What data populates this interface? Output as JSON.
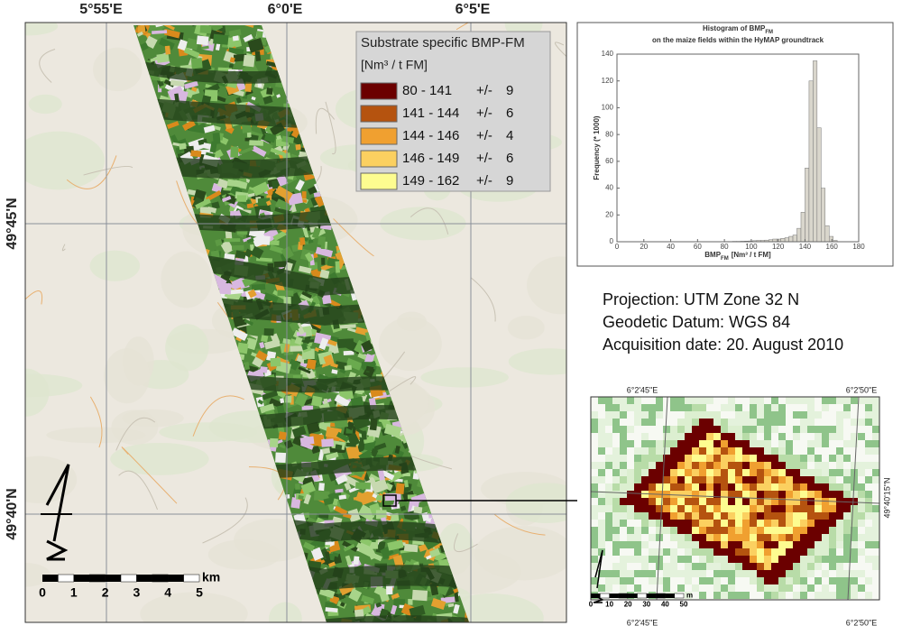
{
  "map": {
    "lon_labels": [
      "5°55'E",
      "6°0'E",
      "6°5'E"
    ],
    "lat_labels": [
      "49°45'N",
      "49°40'N"
    ],
    "scale_labels": [
      "0",
      "1",
      "2",
      "3",
      "4",
      "5"
    ],
    "scale_unit": "km"
  },
  "legend": {
    "title": "Substrate specific BMP-FM",
    "unit": "[Nm³ / t FM]",
    "classes": [
      {
        "range": "80 - 141",
        "sign": "+/-",
        "error": "9",
        "color": "#6b0000"
      },
      {
        "range": "141 - 144",
        "sign": "+/-",
        "error": "6",
        "color": "#b5530f"
      },
      {
        "range": "144 - 146",
        "sign": "+/-",
        "error": "4",
        "color": "#f0a030"
      },
      {
        "range": "146 - 149",
        "sign": "+/-",
        "error": "6",
        "color": "#fbd060"
      },
      {
        "range": "149 - 162",
        "sign": "+/-",
        "error": "9",
        "color": "#fdfc90"
      }
    ]
  },
  "histogram": {
    "type": "histogram",
    "title": {
      "text": "Histogram of BMP",
      "subscript": "FM"
    },
    "subtitle": "on the maize fields within the HyMAP groundtrack",
    "xlabel": {
      "text": "BMP",
      "subscript": "FM",
      "unit": "[Nm³ / t FM]"
    },
    "ylabel": "Frequency (* 1000)",
    "color": "#d9d6cc",
    "bins": [
      80,
      83,
      86,
      89,
      92,
      95,
      98,
      101,
      104,
      107,
      110,
      113,
      116,
      119,
      122,
      125,
      128,
      131,
      134,
      137,
      140,
      143,
      146,
      149,
      152,
      155,
      158,
      161,
      164
    ],
    "counts": [
      0.2,
      0.2,
      0.3,
      0.3,
      0.4,
      0.5,
      0.6,
      0.8,
      1,
      1,
      1.2,
      1.5,
      2,
      2,
      2.5,
      3,
      4,
      5,
      10,
      22,
      55,
      120,
      135,
      85,
      40,
      12,
      4,
      1
    ],
    "xlim": [
      0,
      180
    ],
    "ylim": [
      0,
      140
    ],
    "xticks": [
      0,
      20,
      40,
      60,
      80,
      100,
      120,
      140,
      160,
      180
    ],
    "yticks": [
      0,
      20,
      40,
      60,
      80,
      100,
      120,
      140
    ]
  },
  "info": [
    "Projection: UTM Zone 32 N",
    "Geodetic Datum:   WGS 84",
    "Acquisition date: 20. August 2010"
  ],
  "inset": {
    "lon_labels": [
      "6°2'45\"E",
      "6°2'50\"E"
    ],
    "lat_label": "49°40'15\"N",
    "scale_labels": [
      "0",
      "10",
      "20",
      "30",
      "40",
      "50"
    ],
    "scale_unit": "m"
  }
}
